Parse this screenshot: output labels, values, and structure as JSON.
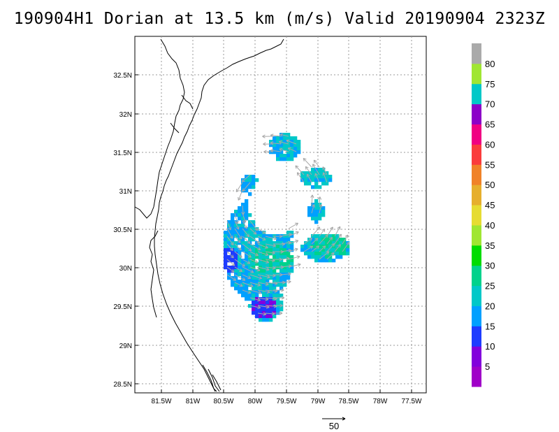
{
  "title": "190904H1 Dorian at 13.5 km (m/s) Valid 20190904 2323Z",
  "axes": {
    "lat_labels": [
      "32.5N",
      "32N",
      "31.5N",
      "31N",
      "30.5N",
      "30N",
      "29.5N",
      "29N",
      "28.5N"
    ],
    "lon_labels": [
      "81.5W",
      "81W",
      "80.5W",
      "80W",
      "79.5W",
      "79W",
      "78.5W",
      "78W",
      "77.5W"
    ]
  },
  "colorbar": {
    "labels": [
      "5",
      "10",
      "15",
      "20",
      "25",
      "30",
      "35",
      "40",
      "45",
      "50",
      "55",
      "60",
      "65",
      "70",
      "75",
      "80"
    ],
    "colors": [
      "#a000c8",
      "#8200dc",
      "#1e3cff",
      "#00a0ff",
      "#00c8c8",
      "#00d28c",
      "#00dc00",
      "#a0e632",
      "#e6dc32",
      "#e6af2d",
      "#f08228",
      "#fa3c3c",
      "#f00082",
      "#8c00c8",
      "#00c8c8",
      "#a0e632",
      "#aaaaaa"
    ]
  },
  "vector_key": {
    "label": "50"
  }
}
